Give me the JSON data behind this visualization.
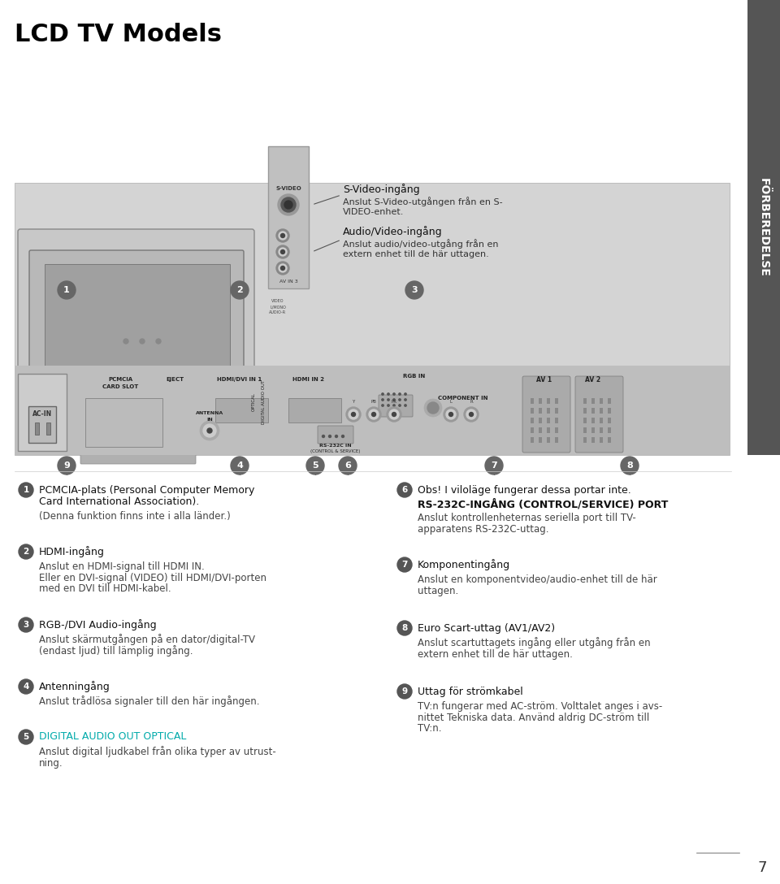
{
  "title": "LCD TV Models",
  "page_number": "7",
  "sidebar_text": "FÖRBEREDELSE",
  "sidebar_color": "#555555",
  "background_color": "#ffffff",
  "text_color": "#000000",
  "gray_color": "#888888",
  "cyan_color": "#00aaaa",
  "dark_gray": "#555555",
  "left_column": [
    {
      "num": "1",
      "heading": "PCMCIA-plats (Personal Computer Memory\nCard International Association).",
      "heading_bold": false,
      "body": "(Denna funktion finns inte i alla länder.)"
    },
    {
      "num": "2",
      "heading": "HDMI-ingång",
      "heading_bold": false,
      "body": "Anslut en HDMI-signal till HDMI IN.\nEller en DVI-signal (VIDEO) till HDMI/DVI-porten\nmed en DVI till HDMI-kabel."
    },
    {
      "num": "3",
      "heading": "RGB-/DVI Audio-ingång",
      "heading_bold": false,
      "body": "Anslut skärmutgången på en dator/digital-TV\n(endast ljud) till lämplig ingång."
    },
    {
      "num": "4",
      "heading": "Antenningång",
      "heading_bold": false,
      "body": "Anslut trådlösa signaler till den här ingången."
    },
    {
      "num": "5",
      "heading": "DIGITAL AUDIO OUT OPTICAL",
      "heading_bold": true,
      "body": "Anslut digital ljudkabel från olika typer av utrust-\nning."
    }
  ],
  "right_column": [
    {
      "num": "6",
      "heading": "Obs! I viloläge fungerar dessa portar inte.",
      "heading_bold": false,
      "subheading": "RS-232C-INGÅNG (CONTROL/SERVICE) PORT",
      "body": "Anslut kontrollenheternas seriella port till TV-\napparatens RS-232C-uttag."
    },
    {
      "num": "7",
      "heading": "Komponentingång",
      "heading_bold": false,
      "body": "Anslut en komponentvideo/audio-enhet till de här\nuttagen."
    },
    {
      "num": "8",
      "heading": "Euro Scart-uttag (AV1/AV2)",
      "heading_bold": false,
      "body": "Anslut scartuttagets ingång eller utgång från en\nextern enhet till de här uttagen."
    },
    {
      "num": "9",
      "heading": "Uttag för strömkabel",
      "heading_bold": false,
      "body": "TV:n fungerar med AC-ström. Volttalet anges i avs-\nnittet Tekniska data. Använd aldrig DC-ström till\nTV:n."
    }
  ]
}
